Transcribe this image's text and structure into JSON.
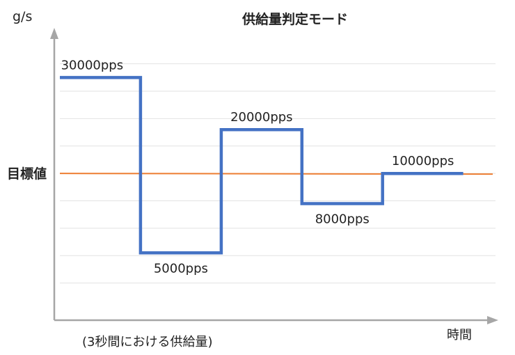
{
  "chart_data": {
    "type": "line",
    "title": "供給量判定モード",
    "ylabel": "g/s",
    "xlabel": "時間",
    "note": "(3秒間における供給量)",
    "target": {
      "label": "目標値",
      "value": 4,
      "color": "#ED7D31"
    },
    "series": [
      {
        "color": "#4472C4",
        "step_points": [
          {
            "x": 0,
            "y": 7.5
          },
          {
            "x": 2.5,
            "y": 7.5
          },
          {
            "x": 2.5,
            "y": 1.1
          },
          {
            "x": 5.0,
            "y": 1.1
          },
          {
            "x": 5.0,
            "y": 5.6
          },
          {
            "x": 7.5,
            "y": 5.6
          },
          {
            "x": 7.5,
            "y": 2.9
          },
          {
            "x": 10.0,
            "y": 2.9
          },
          {
            "x": 10.0,
            "y": 4.0
          },
          {
            "x": 12.5,
            "y": 4.0
          }
        ]
      }
    ],
    "labels": [
      {
        "text": "30000pps",
        "x": 1.0,
        "y": 7.5,
        "pos": "above"
      },
      {
        "text": "5000pps",
        "x": 3.75,
        "y": 1.1,
        "pos": "below"
      },
      {
        "text": "20000pps",
        "x": 6.25,
        "y": 5.6,
        "pos": "above"
      },
      {
        "text": "8000pps",
        "x": 8.75,
        "y": 2.9,
        "pos": "below"
      },
      {
        "text": "10000pps",
        "x": 11.25,
        "y": 4.0,
        "pos": "above"
      }
    ],
    "xlim": [
      0,
      13.5
    ],
    "ylim": [
      -1,
      8.5
    ],
    "grid": true
  }
}
